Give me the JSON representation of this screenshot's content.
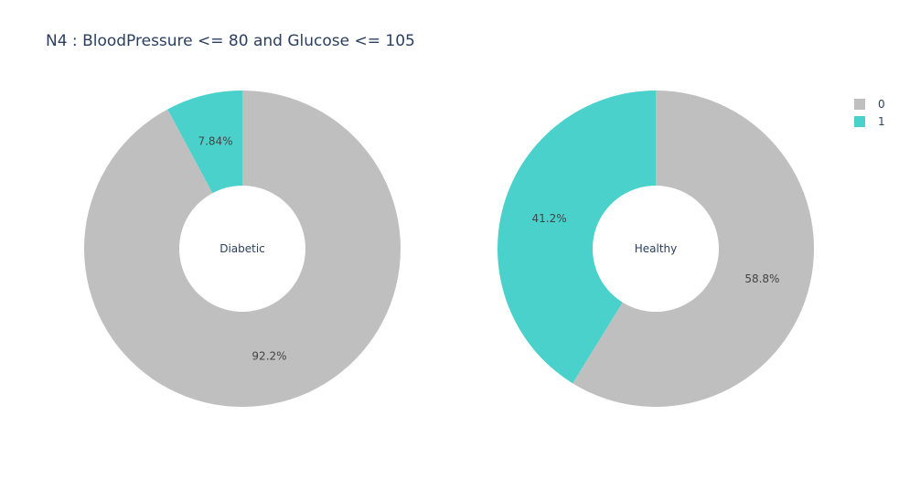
{
  "chart_data": {
    "type": "pie",
    "title": "N4 : BloodPressure <= 80 and Glucose <= 105",
    "legend": {
      "placement": "top-right",
      "entries": [
        "0",
        "1"
      ]
    },
    "colors": {
      "0": "#bfbfbf",
      "1": "#4ad1cc"
    },
    "charts": [
      {
        "center_label": "Diabetic",
        "slices": [
          {
            "name": "0",
            "value": 92.2,
            "label": "92.2%"
          },
          {
            "name": "1",
            "value": 7.84,
            "label": "7.84%"
          }
        ]
      },
      {
        "center_label": "Healthy",
        "slices": [
          {
            "name": "0",
            "value": 58.8,
            "label": "58.8%"
          },
          {
            "name": "1",
            "value": 41.2,
            "label": "41.2%"
          }
        ]
      }
    ]
  }
}
